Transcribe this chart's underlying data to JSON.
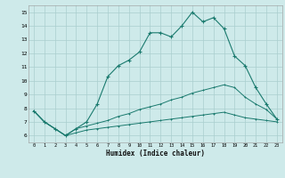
{
  "xlabel": "Humidex (Indice chaleur)",
  "bg_color": "#ceeaea",
  "grid_color": "#aacece",
  "line_color": "#1a7a6e",
  "xlim": [
    -0.5,
    23.5
  ],
  "ylim": [
    5.5,
    15.5
  ],
  "xticks": [
    0,
    1,
    2,
    3,
    4,
    5,
    6,
    7,
    8,
    9,
    10,
    11,
    12,
    13,
    14,
    15,
    16,
    17,
    18,
    19,
    20,
    21,
    22,
    23
  ],
  "yticks": [
    6,
    7,
    8,
    9,
    10,
    11,
    12,
    13,
    14,
    15
  ],
  "series1_x": [
    0,
    1,
    2,
    3,
    4,
    5,
    6,
    7,
    8,
    9,
    10,
    11,
    12,
    13,
    14,
    15,
    16,
    17,
    18,
    19,
    20,
    21,
    22,
    23
  ],
  "series1_y": [
    7.8,
    7.0,
    6.5,
    6.0,
    6.5,
    7.0,
    8.3,
    10.3,
    11.1,
    11.5,
    12.1,
    13.5,
    13.5,
    13.2,
    14.0,
    15.0,
    14.3,
    14.6,
    13.8,
    11.8,
    11.1,
    9.5,
    8.3,
    7.2
  ],
  "series2_x": [
    0,
    1,
    2,
    3,
    4,
    5,
    6,
    7,
    8,
    9,
    10,
    11,
    12,
    13,
    14,
    15,
    16,
    17,
    18,
    19,
    20,
    21,
    22,
    23
  ],
  "series2_y": [
    7.8,
    7.0,
    6.5,
    6.0,
    6.5,
    6.7,
    6.9,
    7.1,
    7.4,
    7.6,
    7.9,
    8.1,
    8.3,
    8.6,
    8.8,
    9.1,
    9.3,
    9.5,
    9.7,
    9.5,
    8.8,
    8.3,
    7.9,
    7.2
  ],
  "series3_x": [
    0,
    1,
    2,
    3,
    4,
    5,
    6,
    7,
    8,
    9,
    10,
    11,
    12,
    13,
    14,
    15,
    16,
    17,
    18,
    19,
    20,
    21,
    22,
    23
  ],
  "series3_y": [
    7.8,
    7.0,
    6.5,
    6.0,
    6.2,
    6.4,
    6.5,
    6.6,
    6.7,
    6.8,
    6.9,
    7.0,
    7.1,
    7.2,
    7.3,
    7.4,
    7.5,
    7.6,
    7.7,
    7.5,
    7.3,
    7.2,
    7.1,
    7.0
  ]
}
